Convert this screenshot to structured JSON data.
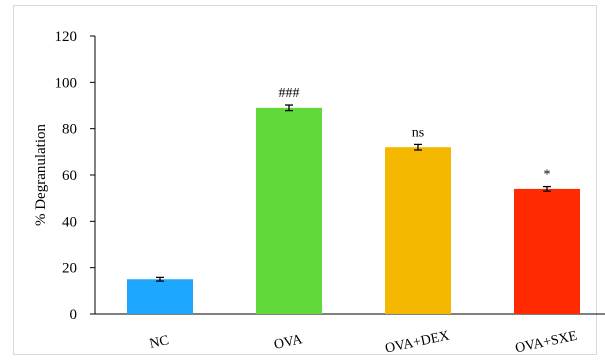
{
  "chart_data": {
    "type": "bar",
    "ylabel": "% Degranulation",
    "ylim": [
      0,
      120
    ],
    "yticks": [
      0,
      20,
      40,
      60,
      80,
      100,
      120
    ],
    "grid": false,
    "legend": "none",
    "categories": [
      "NC",
      "OVA",
      "OVA+DEX",
      "OVA+SXE"
    ],
    "values": [
      15,
      89,
      72,
      54
    ],
    "errors": [
      0.8,
      1.2,
      1.2,
      1.0
    ],
    "annotations": [
      "",
      "###",
      "ns",
      "*"
    ],
    "colors": [
      "#1fa7ff",
      "#62d93b",
      "#f5b800",
      "#ff2a00"
    ]
  }
}
